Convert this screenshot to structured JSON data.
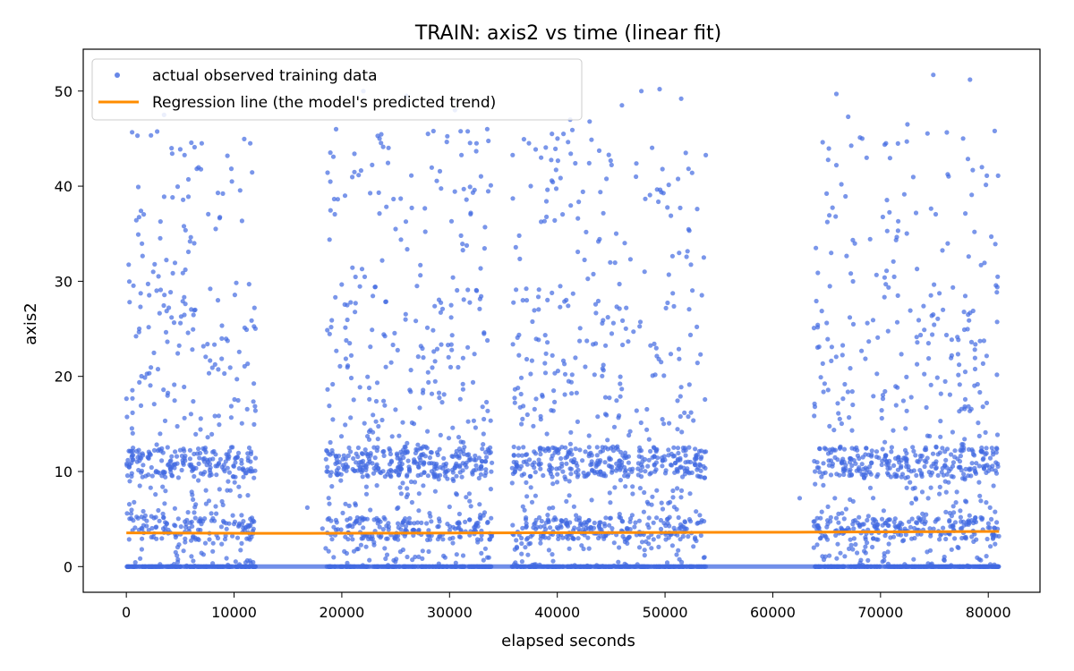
{
  "chart_data": {
    "type": "scatter",
    "title": "TRAIN: axis2 vs time (linear fit)",
    "xlabel": "elapsed seconds",
    "ylabel": "axis2",
    "xlim": [
      -4000,
      84800
    ],
    "ylim": [
      -2.7,
      54.4
    ],
    "xticks": [
      0,
      10000,
      20000,
      30000,
      40000,
      50000,
      60000,
      70000,
      80000
    ],
    "yticks": [
      0,
      10,
      20,
      30,
      40,
      50
    ],
    "legend_position": "upper-left",
    "colors": {
      "points": "#4169E1",
      "line": "#FF8C00"
    },
    "series": [
      {
        "name": "actual observed training data",
        "kind": "scatter",
        "observation_windows": [
          [
            0,
            12000
          ],
          [
            18500,
            34000
          ],
          [
            35800,
            53800
          ],
          [
            63800,
            81000
          ]
        ],
        "summary_bands": [
          0,
          4,
          11
        ],
        "sample_points": [
          [
            500,
            11.5
          ],
          [
            1200,
            25.0
          ],
          [
            2500,
            31.0
          ],
          [
            3500,
            47.5
          ],
          [
            4200,
            44.0
          ],
          [
            6300,
            34.0
          ],
          [
            7000,
            44.5
          ],
          [
            8500,
            28.0
          ],
          [
            9800,
            40.5
          ],
          [
            11500,
            44.5
          ],
          [
            16800,
            6.2
          ],
          [
            18200,
            4.0
          ],
          [
            20300,
            39.0
          ],
          [
            22000,
            50.0
          ],
          [
            23500,
            45.0
          ],
          [
            26000,
            49.5
          ],
          [
            28000,
            45.5
          ],
          [
            30500,
            48.0
          ],
          [
            32500,
            44.5
          ],
          [
            33500,
            46.0
          ],
          [
            36800,
            28.0
          ],
          [
            38500,
            43.0
          ],
          [
            39500,
            45.5
          ],
          [
            41200,
            47.0
          ],
          [
            43000,
            46.8
          ],
          [
            46000,
            48.5
          ],
          [
            47800,
            50.0
          ],
          [
            49500,
            50.2
          ],
          [
            51500,
            49.2
          ],
          [
            53600,
            32.5
          ],
          [
            62500,
            7.2
          ],
          [
            64000,
            33.5
          ],
          [
            65900,
            49.7
          ],
          [
            67000,
            47.3
          ],
          [
            68300,
            45.0
          ],
          [
            70500,
            44.5
          ],
          [
            72500,
            46.5
          ],
          [
            74900,
            51.7
          ],
          [
            78300,
            51.2
          ],
          [
            80600,
            45.8
          ]
        ]
      },
      {
        "name": "Regression line (the model's predicted trend)",
        "kind": "line",
        "segments": [
          [
            [
              0,
              3.55
            ],
            [
              12000,
              3.5
            ],
            [
              17000,
              3.5
            ],
            [
              34000,
              3.55
            ],
            [
              53800,
              3.6
            ],
            [
              64000,
              3.62
            ],
            [
              81000,
              3.7
            ]
          ]
        ]
      }
    ]
  }
}
